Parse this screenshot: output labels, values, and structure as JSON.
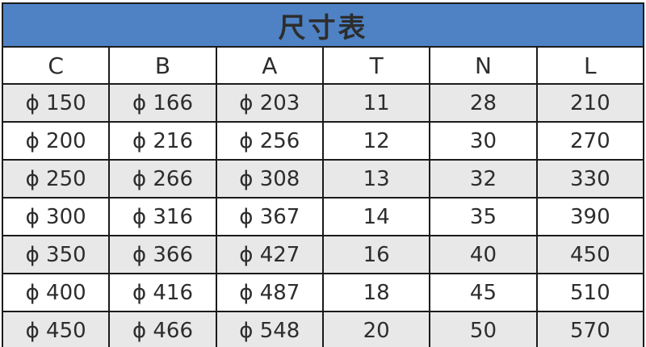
{
  "colors": {
    "title_bg": "#4e82c4",
    "title_text": "#ffffff",
    "stripe_gray": "#e8e8e8",
    "border": "#1b1b1b",
    "cell_text": "#2d2d2d"
  },
  "chart_data": {
    "type": "table",
    "title": "尺寸表",
    "columns": [
      "C",
      "B",
      "A",
      "T",
      "N",
      "L"
    ],
    "rows": [
      [
        "ϕ 150",
        "ϕ 166",
        "ϕ 203",
        "11",
        "28",
        "210"
      ],
      [
        "ϕ 200",
        "ϕ 216",
        "ϕ 256",
        "12",
        "30",
        "270"
      ],
      [
        "ϕ 250",
        "ϕ 266",
        "ϕ 308",
        "13",
        "32",
        "330"
      ],
      [
        "ϕ 300",
        "ϕ 316",
        "ϕ 367",
        "14",
        "35",
        "390"
      ],
      [
        "ϕ 350",
        "ϕ 366",
        "ϕ 427",
        "16",
        "40",
        "450"
      ],
      [
        "ϕ 400",
        "ϕ 416",
        "ϕ 487",
        "18",
        "45",
        "510"
      ],
      [
        "ϕ 450",
        "ϕ 466",
        "ϕ 548",
        "20",
        "50",
        "570"
      ]
    ],
    "layout": {
      "striped_rows": "odd rows gray starting with first data row",
      "grid": true,
      "column_count": 6
    }
  }
}
